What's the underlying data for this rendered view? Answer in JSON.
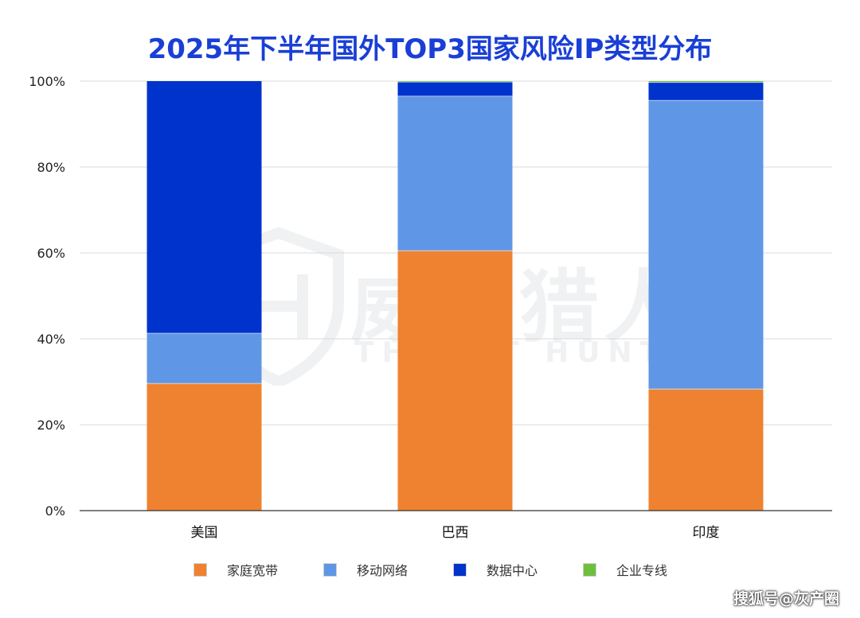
{
  "chart_data": {
    "type": "bar",
    "stacked": true,
    "title": "2025年下半年国外TOP3国家风险IP类型分布",
    "categories": [
      "美国",
      "巴西",
      "印度"
    ],
    "series": [
      {
        "name": "家庭宽带",
        "color": "#ef8230",
        "values": [
          29.6,
          60.5,
          28.3
        ]
      },
      {
        "name": "移动网络",
        "color": "#5f97e6",
        "values": [
          11.7,
          36.0,
          67.2
        ]
      },
      {
        "name": "数据中心",
        "color": "#0033cc",
        "values": [
          58.7,
          3.3,
          4.2
        ]
      },
      {
        "name": "企业专线",
        "color": "#6fbf3f",
        "values": [
          0.0,
          0.2,
          0.3
        ]
      }
    ],
    "yticks": [
      "0%",
      "20%",
      "40%",
      "60%",
      "80%",
      "100%"
    ],
    "ylim": [
      0,
      100
    ],
    "grid": true,
    "legend_position": "bottom"
  },
  "watermark": {
    "text_cn": "威胁猎人",
    "text_en": "THREAT HUNTER"
  },
  "source_mark": "搜狐号@灰产圈"
}
